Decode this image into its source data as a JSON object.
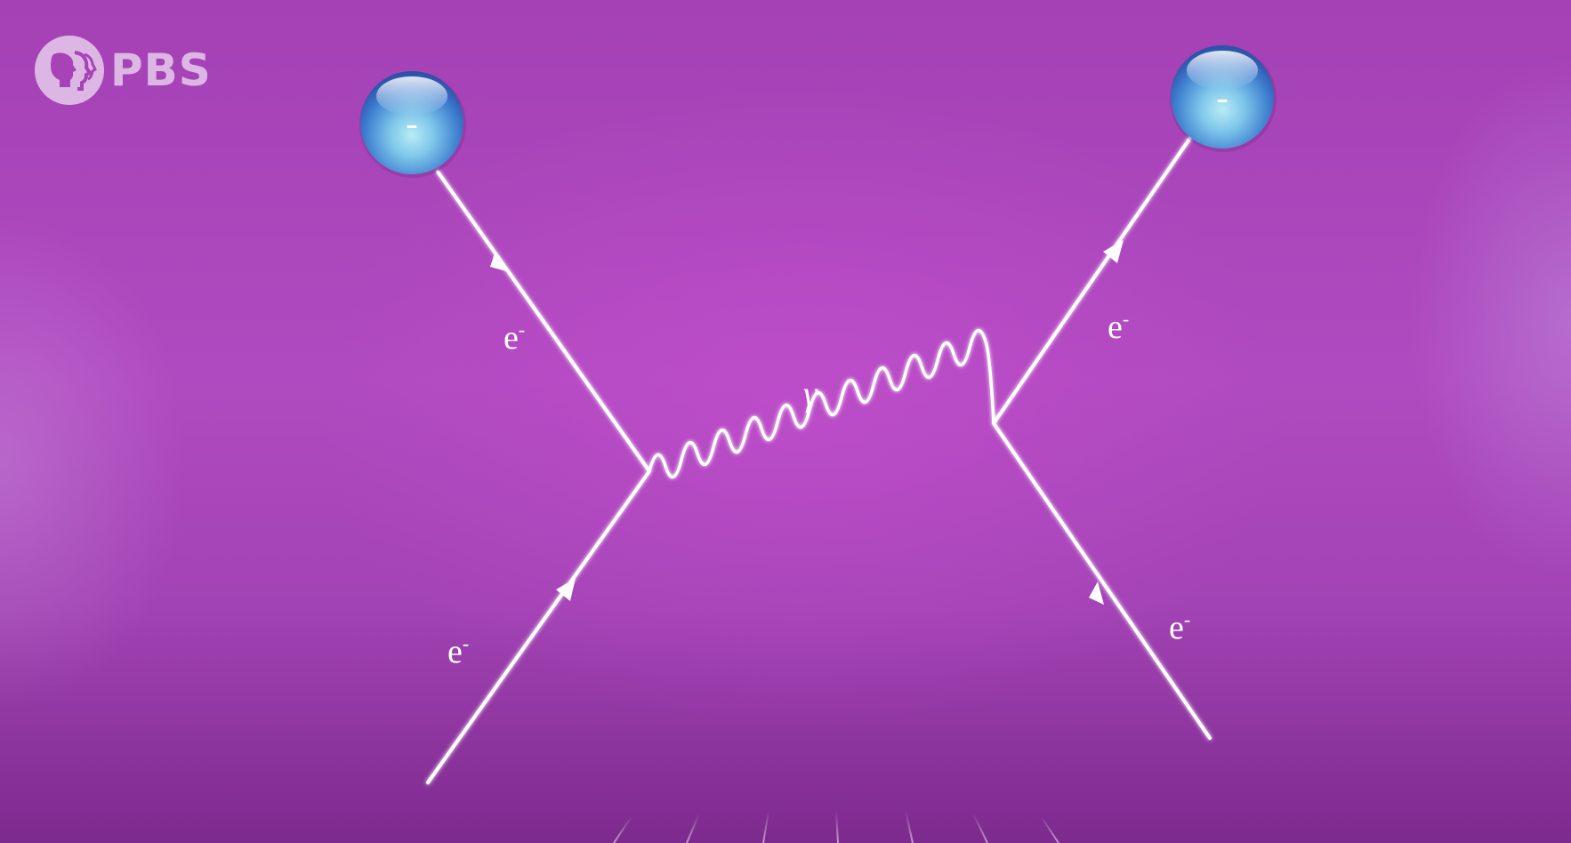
{
  "logo": {
    "text": "PBS",
    "icon": "pbs-heads-icon"
  },
  "diagram": {
    "particles": [
      {
        "name": "electron-top-left",
        "charge_label": "-"
      },
      {
        "name": "electron-top-right",
        "charge_label": "-"
      }
    ],
    "labels": {
      "upper_left": {
        "base": "e",
        "sup": "-"
      },
      "lower_left": {
        "base": "e",
        "sup": "-"
      },
      "upper_right": {
        "base": "e",
        "sup": "-"
      },
      "lower_right": {
        "base": "e",
        "sup": "-"
      },
      "photon": "γ"
    },
    "colors": {
      "background": "#a843b8",
      "line": "#ffffff",
      "sphere": "#4f8fd9"
    }
  }
}
